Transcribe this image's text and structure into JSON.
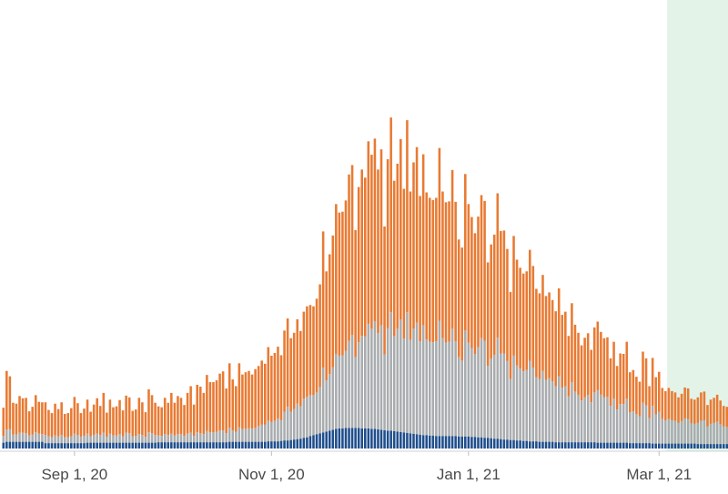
{
  "chart_data": {
    "type": "bar",
    "stacked": true,
    "x_start": "Aug 10, 20",
    "x_end": "Mar 21, 21",
    "x_interval": "day",
    "xticks": [
      {
        "date": "Sep 1, 20",
        "label": "Sep 1, 20"
      },
      {
        "date": "Nov 1, 20",
        "label": "Nov 1, 20"
      },
      {
        "date": "Jan 1, 21",
        "label": "Jan 1, 21"
      },
      {
        "date": "Mar 1, 21",
        "label": "Mar 1, 21"
      }
    ],
    "ylim": [
      0,
      1000
    ],
    "grid": false,
    "legend": "none",
    "highlight": {
      "from": "Mar 4, 21",
      "to": "Mar 21, 21",
      "color": "#e3f3e8"
    },
    "series": [
      {
        "color": "#1f4e8c",
        "values": [
          13,
          15,
          15,
          15,
          15,
          15,
          15,
          15,
          15,
          15,
          15,
          15,
          15,
          12,
          12,
          12,
          12,
          12,
          12,
          12,
          12,
          12,
          12,
          12,
          12,
          12,
          13,
          13,
          13,
          13,
          13,
          13,
          13,
          13,
          13,
          13,
          13,
          13,
          13,
          13,
          13,
          13,
          13,
          13,
          13,
          13,
          13,
          13,
          14,
          14,
          14,
          14,
          14,
          14,
          14,
          14,
          14,
          14,
          14,
          14,
          14,
          14,
          14,
          14,
          14,
          14,
          14,
          14,
          14,
          14,
          15,
          15,
          15,
          15,
          15,
          15,
          15,
          15,
          15,
          15,
          15,
          15,
          16,
          16,
          16,
          16,
          17,
          18,
          18,
          19,
          20,
          21,
          22,
          24,
          25,
          28,
          30,
          32,
          34,
          36,
          38,
          40,
          42,
          44,
          45,
          45,
          46,
          46,
          46,
          46,
          46,
          45,
          45,
          45,
          44,
          44,
          43,
          42,
          41,
          40,
          40,
          39,
          38,
          37,
          36,
          35,
          34,
          33,
          32,
          31,
          30,
          30,
          29,
          29,
          28,
          28,
          28,
          28,
          28,
          28,
          28,
          27,
          27,
          27,
          27,
          26,
          26,
          25,
          25,
          24,
          24,
          23,
          22,
          22,
          21,
          20,
          20,
          19,
          19,
          18,
          18,
          17,
          17,
          16,
          16,
          16,
          15,
          15,
          15,
          15,
          15,
          14,
          14,
          14,
          14,
          14,
          14,
          14,
          14,
          14,
          14,
          14,
          14,
          14,
          13,
          13,
          13,
          13,
          13,
          13,
          13,
          13,
          13,
          13,
          12,
          12,
          12,
          12,
          12,
          12,
          12,
          11,
          11,
          11,
          11,
          11,
          11,
          11,
          11,
          11,
          11,
          11,
          11,
          11,
          11,
          10,
          10,
          10,
          10,
          10,
          10,
          10,
          10,
          10,
          10,
          10,
          10,
          10,
          10,
          10,
          10,
          10,
          10,
          10,
          10,
          10,
          10,
          10,
          10,
          6
        ]
      },
      {
        "color": "#a9acae",
        "values": [
          15,
          27,
          28,
          16,
          16,
          20,
          20,
          19,
          14,
          16,
          21,
          18,
          17,
          18,
          15,
          13,
          17,
          15,
          18,
          13,
          13,
          15,
          21,
          18,
          14,
          16,
          20,
          14,
          17,
          20,
          17,
          22,
          13,
          20,
          16,
          16,
          19,
          14,
          22,
          21,
          14,
          15,
          19,
          17,
          13,
          23,
          21,
          17,
          15,
          14,
          18,
          16,
          19,
          15,
          18,
          18,
          14,
          19,
          21,
          14,
          22,
          20,
          18,
          25,
          22,
          22,
          23,
          26,
          26,
          20,
          31,
          25,
          22,
          32,
          28,
          29,
          30,
          29,
          31,
          35,
          38,
          38,
          46,
          43,
          46,
          51,
          46,
          64,
          75,
          63,
          68,
          79,
          72,
          87,
          90,
          91,
          89,
          93,
          103,
          144,
          114,
          126,
          139,
          167,
          162,
          163,
          172,
          194,
          207,
          158,
          191,
          206,
          205,
          233,
          223,
          240,
          214,
          233,
          169,
          228,
          264,
          211,
          229,
          251,
          209,
          269,
          208,
          234,
          249,
          208,
          245,
          213,
          209,
          208,
          211,
          257,
          218,
          208,
          210,
          239,
          211,
          177,
          169,
          236,
          209,
          198,
          185,
          201,
          221,
          216,
          160,
          177,
          187,
          225,
          191,
          192,
          175,
          136,
          188,
          167,
          160,
          155,
          158,
          179,
          164,
          143,
          140,
          158,
          138,
          142,
          135,
          125,
          147,
          122,
          125,
          102,
          134,
          113,
          105,
          93,
          100,
          105,
          89,
          111,
          117,
          107,
          101,
          102,
          82,
          98,
          74,
          86,
          86,
          98,
          69,
          71,
          65,
          60,
          90,
          84,
          56,
          84,
          65,
          71,
          55,
          52,
          55,
          52,
          51,
          46,
          50,
          56,
          55,
          45,
          44,
          47,
          52,
          53,
          39,
          45,
          47,
          50,
          44,
          39,
          38,
          39,
          35,
          47,
          39,
          42,
          30,
          36,
          38,
          27,
          36,
          37,
          31,
          35,
          27,
          17
        ]
      },
      {
        "color": "#e87a33",
        "values": [
          63,
          131,
          118,
          71,
          69,
          82,
          77,
          79,
          54,
          62,
          83,
          71,
          71,
          73,
          59,
          54,
          71,
          61,
          73,
          52,
          54,
          63,
          82,
          71,
          53,
          61,
          76,
          55,
          68,
          79,
          65,
          89,
          54,
          76,
          63,
          65,
          76,
          58,
          83,
          80,
          57,
          59,
          81,
          73,
          55,
          96,
          85,
          72,
          65,
          64,
          81,
          72,
          91,
          73,
          85,
          81,
          69,
          91,
          104,
          70,
          106,
          104,
          92,
          125,
          112,
          112,
          115,
          127,
          132,
          100,
          144,
          114,
          102,
          143,
          122,
          126,
          128,
          121,
          131,
          134,
          143,
          136,
          164,
          148,
          151,
          160,
          145,
          181,
          197,
          164,
          170,
          188,
          168,
          194,
          202,
          201,
          198,
          209,
          229,
          304,
          243,
          267,
          294,
          334,
          319,
          320,
          335,
          371,
          379,
          283,
          346,
          371,
          354,
          407,
          388,
          407,
          365,
          392,
          285,
          377,
          434,
          347,
          368,
          402,
          334,
          428,
          331,
          371,
          391,
          324,
          381,
          328,
          321,
          317,
          320,
          385,
          327,
          313,
          313,
          354,
          311,
          262,
          252,
          349,
          309,
          292,
          269,
          291,
          319,
          312,
          231,
          255,
          268,
          322,
          273,
          274,
          250,
          194,
          267,
          236,
          225,
          218,
          220,
          248,
          227,
          197,
          191,
          214,
          187,
          191,
          181,
          167,
          196,
          162,
          166,
          135,
          176,
          149,
          139,
          123,
          133,
          138,
          117,
          145,
          153,
          140,
          132,
          133,
          106,
          127,
          97,
          113,
          112,
          127,
          89,
          92,
          83,
          77,
          114,
          105,
          71,
          107,
          83,
          89,
          69,
          65,
          69,
          65,
          63,
          57,
          61,
          69,
          68,
          55,
          54,
          57,
          63,
          64,
          48,
          54,
          56,
          60,
          53,
          46,
          45,
          46,
          41,
          55,
          45,
          49,
          34,
          41,
          43,
          30,
          40,
          41,
          34,
          39,
          29,
          14
        ]
      }
    ]
  }
}
